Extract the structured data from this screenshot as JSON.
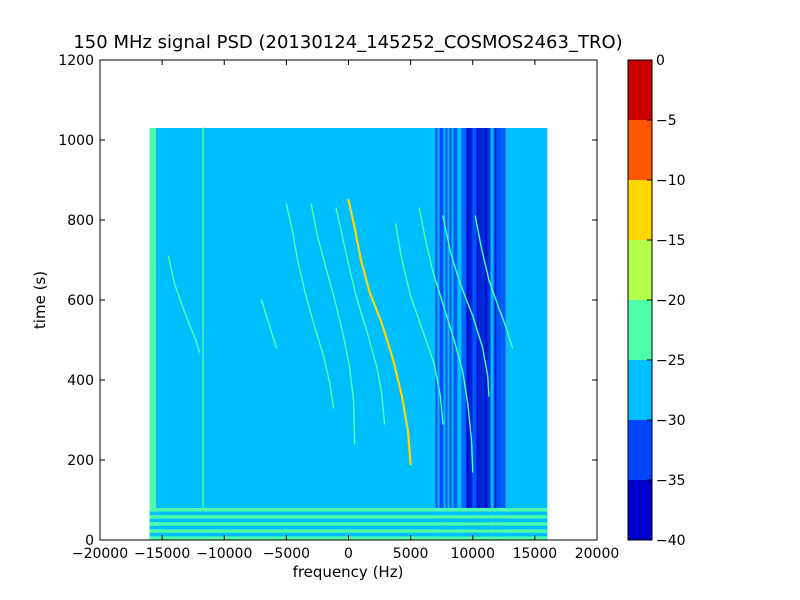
{
  "chart_data": {
    "type": "heatmap",
    "title": "150 MHz signal PSD (20130124_145252_COSMOS2463_TRO)",
    "xlabel": "frequency (Hz)",
    "ylabel": "time (s)",
    "xlim": [
      -20000,
      20000
    ],
    "ylim": [
      0,
      1200
    ],
    "x_ticks": [
      -20000,
      -15000,
      -10000,
      -5000,
      0,
      5000,
      10000,
      15000,
      20000
    ],
    "y_ticks": [
      0,
      200,
      400,
      600,
      800,
      1000,
      1200
    ],
    "data_extent": {
      "x": [
        -16000,
        16000
      ],
      "y": [
        0,
        1030
      ]
    },
    "background_level_band": [
      -30,
      -25
    ],
    "colorbar": {
      "levels": [
        -40,
        -35,
        -30,
        -25,
        -20,
        -15,
        -10,
        -5,
        0
      ],
      "ticks": [
        0,
        -5,
        -10,
        -15,
        -20,
        -25,
        -30,
        -35,
        -40
      ],
      "colors": [
        "#0000cd",
        "#0044ff",
        "#00bfff",
        "#4cffa8",
        "#b2ff4c",
        "#ffd700",
        "#ff5500",
        "#cc0000"
      ]
    },
    "regions": [
      {
        "name": "left-edge-band",
        "x": [
          -16000,
          -15500
        ],
        "y": [
          0,
          1030
        ],
        "color": "#4cffa8"
      },
      {
        "name": "low-power-band",
        "x": [
          7000,
          12500
        ],
        "y": [
          0,
          1030
        ],
        "color": "#0044ff"
      },
      {
        "name": "lowest-power-core",
        "x": [
          9500,
          12000
        ],
        "y": [
          0,
          1030
        ],
        "color": "#0000cd"
      },
      {
        "name": "bottom-striped-band",
        "x": [
          -16000,
          16000
        ],
        "y": [
          0,
          80
        ],
        "color": "#4cffa8"
      }
    ],
    "traces": [
      {
        "name": "main-doppler-trace",
        "color": "#ffd700",
        "points": [
          [
            0,
            850
          ],
          [
            500,
            780
          ],
          [
            1000,
            700
          ],
          [
            1700,
            620
          ],
          [
            2700,
            540
          ],
          [
            3600,
            450
          ],
          [
            4300,
            360
          ],
          [
            4800,
            270
          ],
          [
            5000,
            190
          ]
        ]
      },
      {
        "name": "trace-a",
        "color": "#4cffa8",
        "points": [
          [
            -1000,
            830
          ],
          [
            -500,
            760
          ],
          [
            0,
            690
          ],
          [
            600,
            610
          ],
          [
            1500,
            520
          ],
          [
            2300,
            430
          ],
          [
            2700,
            360
          ],
          [
            2900,
            290
          ]
        ]
      },
      {
        "name": "trace-b",
        "color": "#4cffa8",
        "points": [
          [
            -3000,
            840
          ],
          [
            -2500,
            760
          ],
          [
            -1900,
            690
          ],
          [
            -1100,
            600
          ],
          [
            -400,
            510
          ],
          [
            100,
            430
          ],
          [
            400,
            350
          ],
          [
            500,
            240
          ]
        ]
      },
      {
        "name": "trace-c",
        "color": "#4cffa8",
        "points": [
          [
            -5000,
            840
          ],
          [
            -4500,
            770
          ],
          [
            -4100,
            700
          ],
          [
            -3500,
            620
          ],
          [
            -2800,
            540
          ],
          [
            -2000,
            460
          ],
          [
            -1500,
            390
          ],
          [
            -1200,
            330
          ]
        ]
      },
      {
        "name": "trace-d",
        "color": "#4cffa8",
        "points": [
          [
            3800,
            790
          ],
          [
            4300,
            700
          ],
          [
            5000,
            610
          ],
          [
            6000,
            520
          ],
          [
            6900,
            440
          ],
          [
            7400,
            360
          ],
          [
            7600,
            290
          ]
        ]
      },
      {
        "name": "trace-e",
        "color": "#4cffa8",
        "points": [
          [
            5700,
            830
          ],
          [
            6200,
            750
          ],
          [
            6800,
            670
          ],
          [
            7700,
            580
          ],
          [
            8500,
            500
          ],
          [
            9200,
            420
          ],
          [
            9600,
            340
          ],
          [
            9900,
            250
          ],
          [
            10000,
            170
          ]
        ]
      },
      {
        "name": "trace-f",
        "color": "#4cffa8",
        "points": [
          [
            7600,
            810
          ],
          [
            8200,
            720
          ],
          [
            9000,
            640
          ],
          [
            10000,
            560
          ],
          [
            10800,
            480
          ],
          [
            11200,
            410
          ],
          [
            11300,
            360
          ]
        ]
      },
      {
        "name": "trace-g",
        "color": "#4cffa8",
        "points": [
          [
            10200,
            810
          ],
          [
            10700,
            730
          ],
          [
            11300,
            650
          ],
          [
            12100,
            580
          ],
          [
            12700,
            530
          ],
          [
            13200,
            480
          ]
        ]
      },
      {
        "name": "trace-h",
        "color": "#4cffa8",
        "points": [
          [
            -14500,
            710
          ],
          [
            -14000,
            640
          ],
          [
            -13200,
            570
          ],
          [
            -12300,
            500
          ],
          [
            -12000,
            470
          ]
        ]
      },
      {
        "name": "trace-i",
        "color": "#4cffa8",
        "points": [
          [
            -7000,
            600
          ],
          [
            -6400,
            540
          ],
          [
            -5800,
            480
          ]
        ]
      },
      {
        "name": "vertical-line-left",
        "color": "#4cffa8",
        "points": [
          [
            -11700,
            1030
          ],
          [
            -11700,
            80
          ]
        ]
      }
    ]
  }
}
